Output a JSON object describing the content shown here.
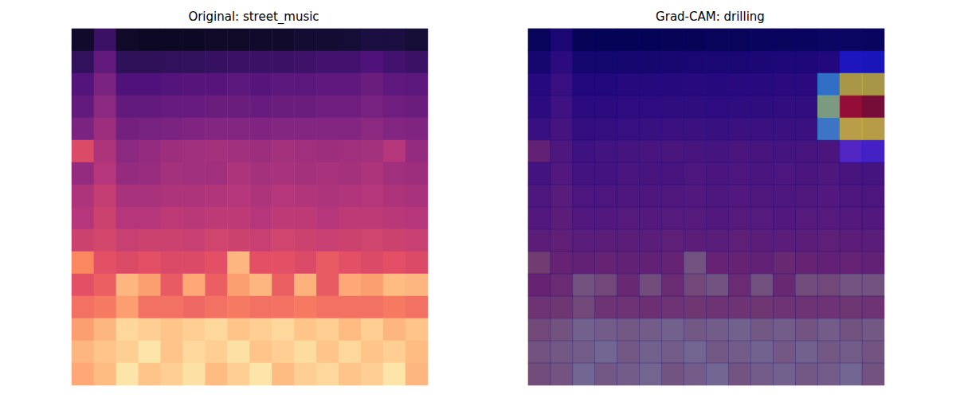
{
  "chart_data": [
    {
      "type": "heatmap",
      "title": "Original: street_music",
      "tick_labels": false,
      "color_range": [
        0,
        1
      ],
      "cells": [
        [
          0.08,
          0.2,
          0.07,
          0.06,
          0.06,
          0.06,
          0.07,
          0.07,
          0.08,
          0.08,
          0.09,
          0.09,
          0.1,
          0.12,
          0.12,
          0.1
        ],
        [
          0.18,
          0.3,
          0.17,
          0.17,
          0.18,
          0.18,
          0.19,
          0.2,
          0.2,
          0.2,
          0.21,
          0.22,
          0.22,
          0.25,
          0.22,
          0.2
        ],
        [
          0.26,
          0.36,
          0.25,
          0.25,
          0.26,
          0.27,
          0.27,
          0.28,
          0.27,
          0.28,
          0.28,
          0.29,
          0.29,
          0.32,
          0.29,
          0.28
        ],
        [
          0.3,
          0.4,
          0.3,
          0.3,
          0.31,
          0.31,
          0.32,
          0.32,
          0.31,
          0.32,
          0.32,
          0.33,
          0.33,
          0.35,
          0.33,
          0.32
        ],
        [
          0.36,
          0.44,
          0.34,
          0.35,
          0.36,
          0.37,
          0.38,
          0.38,
          0.37,
          0.38,
          0.38,
          0.38,
          0.38,
          0.4,
          0.38,
          0.37
        ],
        [
          0.6,
          0.48,
          0.4,
          0.42,
          0.44,
          0.45,
          0.46,
          0.45,
          0.44,
          0.46,
          0.45,
          0.44,
          0.45,
          0.46,
          0.5,
          0.42
        ],
        [
          0.42,
          0.5,
          0.42,
          0.43,
          0.46,
          0.45,
          0.45,
          0.48,
          0.46,
          0.47,
          0.46,
          0.47,
          0.46,
          0.48,
          0.45,
          0.44
        ],
        [
          0.48,
          0.54,
          0.47,
          0.47,
          0.48,
          0.48,
          0.49,
          0.5,
          0.48,
          0.5,
          0.49,
          0.48,
          0.49,
          0.5,
          0.48,
          0.47
        ],
        [
          0.5,
          0.56,
          0.5,
          0.5,
          0.52,
          0.51,
          0.52,
          0.52,
          0.5,
          0.52,
          0.52,
          0.5,
          0.52,
          0.52,
          0.51,
          0.5
        ],
        [
          0.56,
          0.58,
          0.55,
          0.56,
          0.56,
          0.55,
          0.57,
          0.56,
          0.55,
          0.57,
          0.56,
          0.55,
          0.56,
          0.57,
          0.56,
          0.55
        ],
        [
          0.75,
          0.62,
          0.6,
          0.62,
          0.6,
          0.6,
          0.62,
          0.85,
          0.62,
          0.62,
          0.6,
          0.65,
          0.62,
          0.6,
          0.62,
          0.6
        ],
        [
          0.62,
          0.66,
          0.85,
          0.8,
          0.65,
          0.82,
          0.66,
          0.8,
          0.85,
          0.66,
          0.84,
          0.65,
          0.82,
          0.8,
          0.86,
          0.85
        ],
        [
          0.7,
          0.72,
          0.8,
          0.7,
          0.7,
          0.68,
          0.7,
          0.72,
          0.7,
          0.7,
          0.72,
          0.7,
          0.7,
          0.7,
          0.72,
          0.7
        ],
        [
          0.8,
          0.85,
          0.92,
          0.9,
          0.88,
          0.9,
          0.92,
          0.88,
          0.9,
          0.92,
          0.88,
          0.9,
          0.86,
          0.9,
          0.85,
          0.88
        ],
        [
          0.85,
          0.88,
          0.9,
          0.95,
          0.88,
          0.92,
          0.9,
          0.94,
          0.88,
          0.9,
          0.93,
          0.88,
          0.92,
          0.88,
          0.9,
          0.86
        ],
        [
          0.82,
          0.86,
          0.95,
          0.88,
          0.9,
          0.94,
          0.86,
          0.9,
          0.95,
          0.86,
          0.9,
          0.92,
          0.88,
          0.9,
          0.95,
          0.85
        ]
      ]
    },
    {
      "type": "heatmap",
      "title": "Grad-CAM: drilling",
      "tick_labels": false,
      "color_range": [
        0,
        1
      ],
      "cam_range": [
        0,
        1
      ],
      "cells": [
        [
          0.08,
          0.2,
          0.07,
          0.06,
          0.06,
          0.06,
          0.07,
          0.07,
          0.08,
          0.08,
          0.09,
          0.09,
          0.1,
          0.12,
          0.12,
          0.1
        ],
        [
          0.18,
          0.3,
          0.17,
          0.17,
          0.18,
          0.18,
          0.19,
          0.2,
          0.2,
          0.2,
          0.21,
          0.22,
          0.22,
          0.25,
          0.22,
          0.2
        ],
        [
          0.26,
          0.36,
          0.25,
          0.25,
          0.26,
          0.27,
          0.27,
          0.28,
          0.27,
          0.28,
          0.28,
          0.29,
          0.29,
          0.32,
          0.29,
          0.28
        ],
        [
          0.3,
          0.4,
          0.3,
          0.3,
          0.31,
          0.31,
          0.32,
          0.32,
          0.31,
          0.32,
          0.32,
          0.33,
          0.33,
          0.35,
          0.33,
          0.32
        ],
        [
          0.36,
          0.44,
          0.34,
          0.35,
          0.36,
          0.37,
          0.38,
          0.38,
          0.37,
          0.38,
          0.38,
          0.38,
          0.38,
          0.4,
          0.38,
          0.37
        ],
        [
          0.6,
          0.48,
          0.4,
          0.42,
          0.44,
          0.45,
          0.46,
          0.45,
          0.44,
          0.46,
          0.45,
          0.44,
          0.45,
          0.46,
          0.5,
          0.42
        ],
        [
          0.42,
          0.5,
          0.42,
          0.43,
          0.46,
          0.45,
          0.45,
          0.48,
          0.46,
          0.47,
          0.46,
          0.47,
          0.46,
          0.48,
          0.45,
          0.44
        ],
        [
          0.48,
          0.54,
          0.47,
          0.47,
          0.48,
          0.48,
          0.49,
          0.5,
          0.48,
          0.5,
          0.49,
          0.48,
          0.49,
          0.5,
          0.48,
          0.47
        ],
        [
          0.5,
          0.56,
          0.5,
          0.5,
          0.52,
          0.51,
          0.52,
          0.52,
          0.5,
          0.52,
          0.52,
          0.5,
          0.52,
          0.52,
          0.51,
          0.5
        ],
        [
          0.56,
          0.58,
          0.55,
          0.56,
          0.56,
          0.55,
          0.57,
          0.56,
          0.55,
          0.57,
          0.56,
          0.55,
          0.56,
          0.57,
          0.56,
          0.55
        ],
        [
          0.75,
          0.62,
          0.6,
          0.62,
          0.6,
          0.6,
          0.62,
          0.85,
          0.62,
          0.62,
          0.6,
          0.65,
          0.62,
          0.6,
          0.62,
          0.6
        ],
        [
          0.62,
          0.66,
          0.85,
          0.8,
          0.65,
          0.82,
          0.66,
          0.8,
          0.85,
          0.66,
          0.84,
          0.65,
          0.82,
          0.8,
          0.86,
          0.85
        ],
        [
          0.7,
          0.72,
          0.8,
          0.7,
          0.7,
          0.68,
          0.7,
          0.72,
          0.7,
          0.7,
          0.72,
          0.7,
          0.7,
          0.7,
          0.72,
          0.7
        ],
        [
          0.8,
          0.85,
          0.92,
          0.9,
          0.88,
          0.9,
          0.92,
          0.88,
          0.9,
          0.92,
          0.88,
          0.9,
          0.86,
          0.9,
          0.85,
          0.88
        ],
        [
          0.85,
          0.88,
          0.9,
          0.95,
          0.88,
          0.92,
          0.9,
          0.94,
          0.88,
          0.9,
          0.93,
          0.88,
          0.92,
          0.88,
          0.9,
          0.86
        ],
        [
          0.82,
          0.86,
          0.95,
          0.88,
          0.9,
          0.94,
          0.86,
          0.9,
          0.95,
          0.86,
          0.9,
          0.92,
          0.88,
          0.9,
          0.95,
          0.85
        ]
      ],
      "cam": [
        [
          0,
          0,
          0,
          0,
          0,
          0,
          0,
          0,
          0,
          0,
          0,
          0,
          0,
          0,
          0,
          0
        ],
        [
          0,
          0,
          0,
          0,
          0,
          0,
          0,
          0,
          0,
          0,
          0,
          0,
          0,
          0,
          0.15,
          0.15
        ],
        [
          0,
          0,
          0,
          0,
          0,
          0,
          0,
          0,
          0,
          0,
          0,
          0,
          0,
          0.3,
          0.6,
          0.6
        ],
        [
          0,
          0,
          0,
          0,
          0,
          0,
          0,
          0,
          0,
          0,
          0,
          0,
          0,
          0.5,
          0.95,
          1
        ],
        [
          0,
          0,
          0,
          0,
          0,
          0,
          0,
          0,
          0,
          0,
          0,
          0,
          0,
          0.3,
          0.6,
          0.6
        ],
        [
          0,
          0,
          0,
          0,
          0,
          0,
          0,
          0,
          0,
          0,
          0,
          0,
          0,
          0,
          0.15,
          0.15
        ],
        [
          0,
          0,
          0,
          0,
          0,
          0,
          0,
          0,
          0,
          0,
          0,
          0,
          0,
          0,
          0,
          0
        ],
        [
          0,
          0,
          0,
          0,
          0,
          0,
          0,
          0,
          0,
          0,
          0,
          0,
          0,
          0,
          0,
          0
        ],
        [
          0,
          0,
          0,
          0,
          0,
          0,
          0,
          0,
          0,
          0,
          0,
          0,
          0,
          0,
          0,
          0
        ],
        [
          0,
          0,
          0,
          0,
          0,
          0,
          0,
          0,
          0,
          0,
          0,
          0,
          0,
          0,
          0,
          0
        ],
        [
          0,
          0,
          0,
          0,
          0,
          0,
          0,
          0,
          0,
          0,
          0,
          0,
          0,
          0,
          0,
          0
        ],
        [
          0,
          0,
          0,
          0,
          0,
          0,
          0,
          0,
          0,
          0,
          0,
          0,
          0,
          0,
          0,
          0
        ],
        [
          0,
          0,
          0,
          0,
          0,
          0,
          0,
          0,
          0,
          0,
          0,
          0,
          0,
          0,
          0,
          0
        ],
        [
          0,
          0,
          0,
          0,
          0,
          0,
          0,
          0,
          0,
          0,
          0,
          0,
          0,
          0,
          0,
          0
        ],
        [
          0,
          0,
          0,
          0,
          0,
          0,
          0,
          0,
          0,
          0,
          0,
          0,
          0,
          0,
          0,
          0
        ],
        [
          0,
          0,
          0,
          0,
          0,
          0,
          0,
          0,
          0,
          0,
          0,
          0,
          0,
          0,
          0,
          0
        ]
      ]
    }
  ]
}
